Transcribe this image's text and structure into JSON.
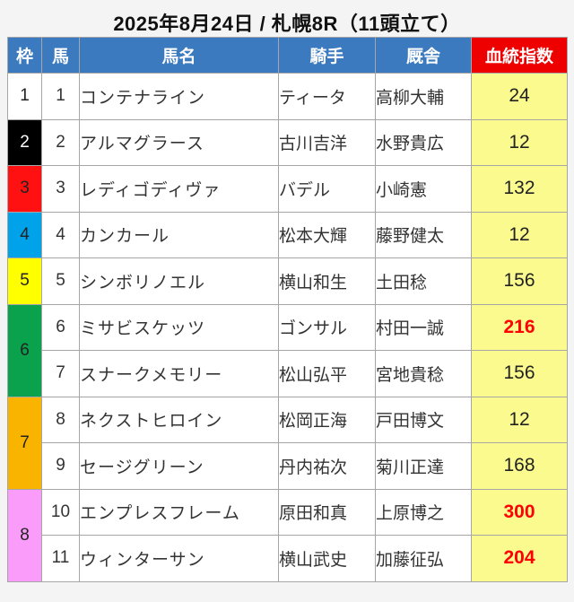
{
  "title": "2025年8月24日 / 札幌8R（11頭立て）",
  "table": {
    "headers": [
      "枠",
      "馬",
      "馬名",
      "騎手",
      "厩舎",
      "血統指数"
    ]
  },
  "frames": [
    {
      "label": "1",
      "color": "#ffffff",
      "text": "#222222",
      "rows": 1
    },
    {
      "label": "2",
      "color": "#000000",
      "text": "#ffffff",
      "rows": 1
    },
    {
      "label": "3",
      "color": "#ff1111",
      "text": "#222222",
      "rows": 1
    },
    {
      "label": "4",
      "color": "#00a2e9",
      "text": "#222222",
      "rows": 1
    },
    {
      "label": "5",
      "color": "#ffff00",
      "text": "#222222",
      "rows": 1
    },
    {
      "label": "6",
      "color": "#0ba24d",
      "text": "#222222",
      "rows": 2
    },
    {
      "label": "7",
      "color": "#f9b400",
      "text": "#222222",
      "rows": 2
    },
    {
      "label": "8",
      "color": "#fa9dfa",
      "text": "#222222",
      "rows": 2
    }
  ],
  "horses": [
    {
      "num": "1",
      "name": "コンテナライン",
      "jockey": "ティータ",
      "stable": "高柳大輔",
      "index": "24",
      "hot": false
    },
    {
      "num": "2",
      "name": "アルマグラース",
      "jockey": "古川吉洋",
      "stable": "水野貴広",
      "index": "12",
      "hot": false
    },
    {
      "num": "3",
      "name": "レディゴディヴァ",
      "jockey": "バデル",
      "stable": "小崎憲",
      "index": "132",
      "hot": false
    },
    {
      "num": "4",
      "name": "カンカール",
      "jockey": "松本大輝",
      "stable": "藤野健太",
      "index": "12",
      "hot": false
    },
    {
      "num": "5",
      "name": "シンボリノエル",
      "jockey": "横山和生",
      "stable": "土田稔",
      "index": "156",
      "hot": false
    },
    {
      "num": "6",
      "name": "ミサビスケッツ",
      "jockey": "ゴンサル",
      "stable": "村田一誠",
      "index": "216",
      "hot": true
    },
    {
      "num": "7",
      "name": "スナークメモリー",
      "jockey": "松山弘平",
      "stable": "宮地貴稔",
      "index": "156",
      "hot": false
    },
    {
      "num": "8",
      "name": "ネクストヒロイン",
      "jockey": "松岡正海",
      "stable": "戸田博文",
      "index": "12",
      "hot": false
    },
    {
      "num": "9",
      "name": "セージグリーン",
      "jockey": "丹内祐次",
      "stable": "菊川正達",
      "index": "168",
      "hot": false
    },
    {
      "num": "10",
      "name": "エンプレスフレーム",
      "jockey": "原田和真",
      "stable": "上原博之",
      "index": "300",
      "hot": true
    },
    {
      "num": "11",
      "name": "ウィンターサン",
      "jockey": "横山武史",
      "stable": "加藤征弘",
      "index": "204",
      "hot": true
    }
  ],
  "colors": {
    "header_bg": "#3b7abf",
    "header_text": "#ffffff",
    "index_header_bg": "#ee0000",
    "index_cell_bg": "#fafa8f",
    "hot_value": "#ff0000",
    "normal_value": "#222222",
    "grid_border": "#a6a6a6",
    "page_bg": "#f4f4f5"
  }
}
